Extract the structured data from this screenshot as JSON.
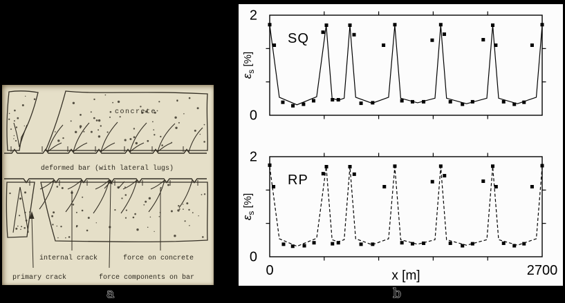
{
  "figure": {
    "caption_a": "a",
    "caption_b": "b"
  },
  "panel_a": {
    "description": "scanned hand-drawn diagram of bond cracking around a reinforcing bar",
    "labels": {
      "concrete": "concrete",
      "deformed_bar": "deformed bar (with lateral lugs)",
      "internal_crack": "internal crack",
      "force_on_concrete": "force on concrete",
      "primary_crack": "primary crack",
      "force_components": "force components on bar"
    },
    "colors": {
      "paper": "#e5dfc8",
      "ink": "#332e24"
    }
  },
  "chart_data": [
    {
      "type": "line",
      "id": "sq",
      "label": "SQ",
      "line_style": "solid",
      "marker": "square",
      "xlim": [
        0,
        2700
      ],
      "ylim": [
        0,
        2
      ],
      "grid": false,
      "x_minor_ticks": [
        540,
        1080,
        1620,
        2160
      ],
      "y_minor_ticks": [
        0.667,
        1.333
      ],
      "y_ticks": [
        {
          "value": 0,
          "label": "0"
        },
        {
          "value": 2,
          "label": "2"
        }
      ],
      "x_ticks": [],
      "xlabel": "",
      "ylabel": {
        "symbol": "ε",
        "subscript": "s",
        "unit": "[%]"
      },
      "line_points": [
        [
          0,
          1.8
        ],
        [
          95,
          0.36
        ],
        [
          270,
          0.21
        ],
        [
          465,
          0.37
        ],
        [
          560,
          1.8
        ],
        [
          618,
          0.34
        ],
        [
          678,
          0.3
        ],
        [
          738,
          0.34
        ],
        [
          795,
          1.8
        ],
        [
          852,
          0.36
        ],
        [
          1015,
          0.24
        ],
        [
          1178,
          0.36
        ],
        [
          1240,
          1.8
        ],
        [
          1298,
          0.34
        ],
        [
          1465,
          0.25
        ],
        [
          1638,
          0.34
        ],
        [
          1695,
          1.8
        ],
        [
          1752,
          0.34
        ],
        [
          1950,
          0.23
        ],
        [
          2152,
          0.34
        ],
        [
          2210,
          1.8
        ],
        [
          2268,
          0.34
        ],
        [
          2455,
          0.23
        ],
        [
          2642,
          0.36
        ],
        [
          2700,
          1.8
        ]
      ],
      "markers": [
        [
          0,
          1.81
        ],
        [
          45,
          1.4
        ],
        [
          130,
          0.26
        ],
        [
          230,
          0.19
        ],
        [
          335,
          0.22
        ],
        [
          435,
          0.29
        ],
        [
          528,
          1.66
        ],
        [
          562,
          1.8
        ],
        [
          622,
          0.31
        ],
        [
          680,
          0.31
        ],
        [
          795,
          1.8
        ],
        [
          836,
          1.61
        ],
        [
          905,
          0.24
        ],
        [
          1020,
          0.25
        ],
        [
          1128,
          1.4
        ],
        [
          1240,
          1.81
        ],
        [
          1310,
          0.29
        ],
        [
          1415,
          0.27
        ],
        [
          1525,
          0.27
        ],
        [
          1610,
          1.5
        ],
        [
          1695,
          1.81
        ],
        [
          1730,
          1.62
        ],
        [
          1790,
          0.27
        ],
        [
          1910,
          0.22
        ],
        [
          2010,
          0.27
        ],
        [
          2116,
          1.51
        ],
        [
          2210,
          1.8
        ],
        [
          2240,
          1.4
        ],
        [
          2318,
          0.27
        ],
        [
          2424,
          0.22
        ],
        [
          2520,
          0.26
        ],
        [
          2600,
          1.4
        ],
        [
          2700,
          1.81
        ]
      ]
    },
    {
      "type": "line",
      "id": "rp",
      "label": "RP",
      "line_style": "dashed",
      "marker": "square",
      "xlim": [
        0,
        2700
      ],
      "ylim": [
        0,
        2
      ],
      "grid": false,
      "x_minor_ticks": [
        540,
        1080,
        1620,
        2160
      ],
      "y_minor_ticks": [
        0.667,
        1.333
      ],
      "y_ticks": [
        {
          "value": 0,
          "label": "0"
        },
        {
          "value": 2,
          "label": "2"
        }
      ],
      "x_ticks": [
        {
          "value": 0,
          "label": "0"
        },
        {
          "value": 2700,
          "label": "2700"
        }
      ],
      "xlabel": "x [m]",
      "ylabel": {
        "symbol": "ε",
        "subscript": "s",
        "unit": "[%]"
      },
      "line_points": [
        [
          0,
          1.8
        ],
        [
          95,
          0.36
        ],
        [
          270,
          0.21
        ],
        [
          465,
          0.37
        ],
        [
          560,
          1.8
        ],
        [
          618,
          0.34
        ],
        [
          678,
          0.3
        ],
        [
          738,
          0.34
        ],
        [
          795,
          1.8
        ],
        [
          852,
          0.36
        ],
        [
          1015,
          0.24
        ],
        [
          1178,
          0.36
        ],
        [
          1240,
          1.8
        ],
        [
          1298,
          0.34
        ],
        [
          1465,
          0.25
        ],
        [
          1638,
          0.34
        ],
        [
          1695,
          1.8
        ],
        [
          1752,
          0.34
        ],
        [
          1950,
          0.23
        ],
        [
          2152,
          0.34
        ],
        [
          2210,
          1.8
        ],
        [
          2268,
          0.34
        ],
        [
          2455,
          0.23
        ],
        [
          2642,
          0.36
        ],
        [
          2700,
          1.8
        ]
      ],
      "markers": [
        [
          0,
          1.83
        ],
        [
          38,
          1.4
        ],
        [
          137,
          0.25
        ],
        [
          228,
          0.21
        ],
        [
          343,
          0.22
        ],
        [
          439,
          0.28
        ],
        [
          530,
          1.66
        ],
        [
          562,
          1.8
        ],
        [
          622,
          0.26
        ],
        [
          680,
          0.28
        ],
        [
          795,
          1.8
        ],
        [
          838,
          1.65
        ],
        [
          905,
          0.25
        ],
        [
          1020,
          0.25
        ],
        [
          1136,
          1.4
        ],
        [
          1240,
          1.81
        ],
        [
          1310,
          0.28
        ],
        [
          1415,
          0.26
        ],
        [
          1525,
          0.27
        ],
        [
          1612,
          1.5
        ],
        [
          1695,
          1.81
        ],
        [
          1732,
          1.62
        ],
        [
          1790,
          0.27
        ],
        [
          1910,
          0.22
        ],
        [
          2010,
          0.26
        ],
        [
          2116,
          1.51
        ],
        [
          2210,
          1.81
        ],
        [
          2243,
          1.4
        ],
        [
          2318,
          0.27
        ],
        [
          2424,
          0.22
        ],
        [
          2520,
          0.26
        ],
        [
          2600,
          1.4
        ],
        [
          2700,
          1.82
        ]
      ]
    }
  ],
  "colors": {
    "page_background": "#000000",
    "chart_background": "#fcfcfc",
    "plot_ink": "#000000"
  }
}
